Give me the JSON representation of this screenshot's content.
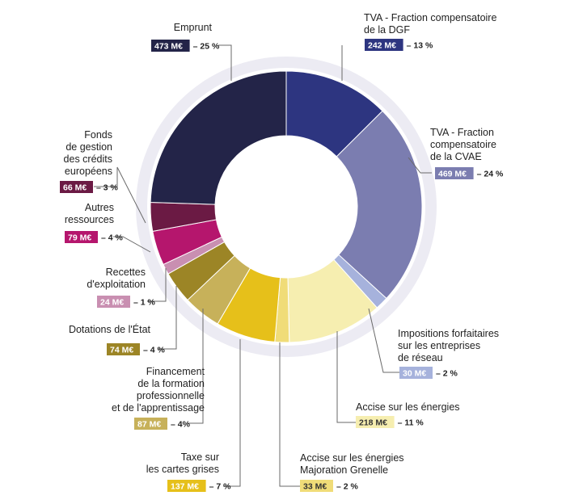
{
  "chart_data": {
    "type": "pie",
    "donut": true,
    "slices": [
      {
        "label": [
          "TVA - Fraction compensatoire",
          "de la DGF"
        ],
        "amount": "242 M€",
        "pct": "– 13 %",
        "value": 242,
        "color": "#2d3580",
        "tagColor": "#2d3580",
        "tagText": "#ffffff"
      },
      {
        "label": [
          "TVA - Fraction",
          "compensatoire",
          "de la CVAE"
        ],
        "amount": "469 M€",
        "pct": "– 24 %",
        "value": 469,
        "color": "#7b7db0",
        "tagColor": "#7b7db0",
        "tagText": "#ffffff"
      },
      {
        "label": [
          "Impositions forfaitaires",
          "sur les entreprises",
          "de réseau"
        ],
        "amount": "30 M€",
        "pct": "– 2 %",
        "value": 30,
        "color": "#a6b2dc",
        "tagColor": "#a6b2dc",
        "tagText": "#ffffff"
      },
      {
        "label": [
          "Accise sur les énergies"
        ],
        "amount": "218 M€",
        "pct": "– 11 %",
        "value": 218,
        "color": "#f6eeb0",
        "tagColor": "#f6eeb0",
        "tagText": "#333333"
      },
      {
        "label": [
          "Accise sur les énergies",
          "Majoration Grenelle"
        ],
        "amount": "33 M€",
        "pct": "– 2 %",
        "value": 33,
        "color": "#f0dc78",
        "tagColor": "#f0dc78",
        "tagText": "#333333"
      },
      {
        "label": [
          "Taxe sur",
          "les cartes grises"
        ],
        "amount": "137 M€",
        "pct": "– 7 %",
        "value": 137,
        "color": "#e6c01a",
        "tagColor": "#e6c01a",
        "tagText": "#ffffff"
      },
      {
        "label": [
          "Financement",
          "de la formation",
          "professionnelle",
          "et de l'apprentissage"
        ],
        "amount": "87 M€",
        "pct": "– 4%",
        "value": 87,
        "color": "#c7b15a",
        "tagColor": "#c7b15a",
        "tagText": "#ffffff"
      },
      {
        "label": [
          "Dotations de l'État"
        ],
        "amount": "74 M€",
        "pct": "– 4 %",
        "value": 74,
        "color": "#9c8526",
        "tagColor": "#9c8526",
        "tagText": "#ffffff"
      },
      {
        "label": [
          "Recettes",
          "d'exploitation"
        ],
        "amount": "24 M€",
        "pct": "– 1 %",
        "value": 24,
        "color": "#c98fb1",
        "tagColor": "#c98fb1",
        "tagText": "#ffffff"
      },
      {
        "label": [
          "Autres",
          "ressources"
        ],
        "amount": "79 M€",
        "pct": "– 4 %",
        "value": 79,
        "color": "#b5166d",
        "tagColor": "#b5166d",
        "tagText": "#ffffff"
      },
      {
        "label": [
          "Fonds",
          "de gestion",
          "des crédits",
          "européens"
        ],
        "amount": "66 M€",
        "pct": "– 3 %",
        "value": 66,
        "color": "#6b1a44",
        "tagColor": "#6b1a44",
        "tagText": "#ffffff"
      },
      {
        "label": [
          "Emprunt"
        ],
        "amount": "473 M€",
        "pct": "– 25 %",
        "value": 473,
        "color": "#232448",
        "tagColor": "#232448",
        "tagText": "#ffffff"
      }
    ]
  }
}
